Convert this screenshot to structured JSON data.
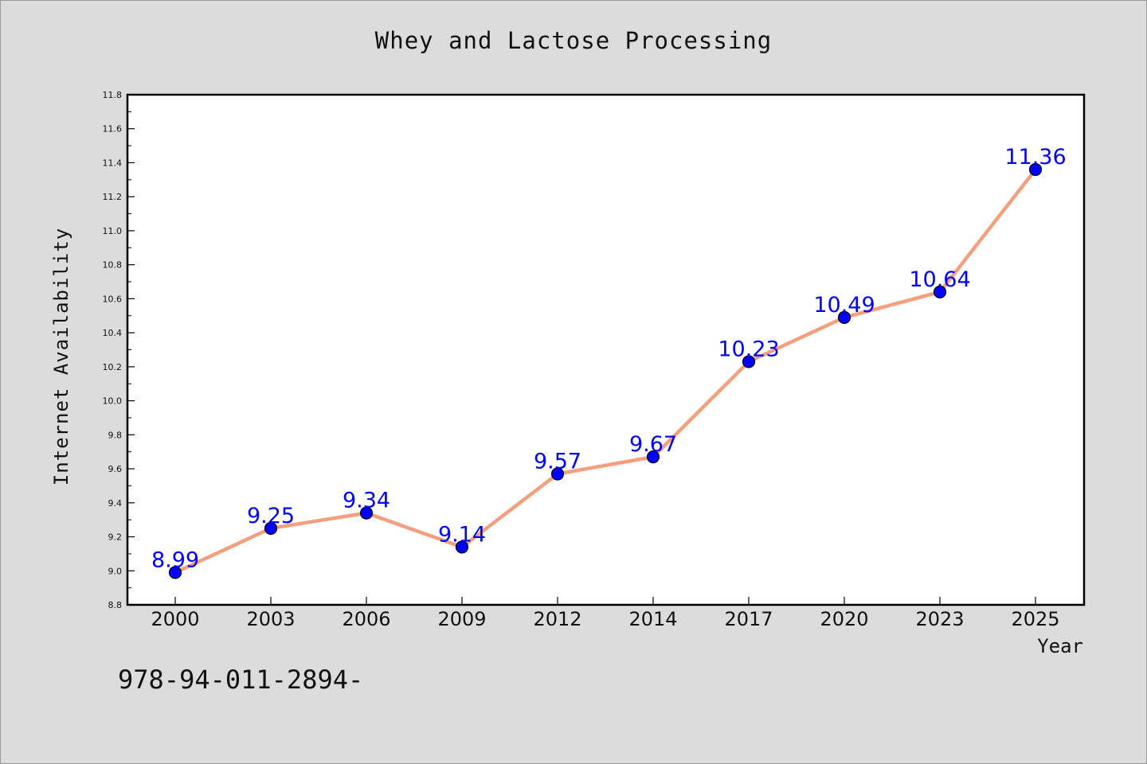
{
  "chart_data": {
    "type": "line",
    "title": "Whey and Lactose Processing",
    "xlabel": "Year",
    "ylabel": "Internet Availability",
    "categories": [
      "2000",
      "2003",
      "2006",
      "2009",
      "2012",
      "2014",
      "2017",
      "2020",
      "2023",
      "2025"
    ],
    "series": [
      {
        "values": [
          8.99,
          9.25,
          9.34,
          9.14,
          9.57,
          9.67,
          10.23,
          10.49,
          10.64,
          11.36
        ],
        "labels": [
          "8.99",
          "9.25",
          "9.34",
          "9.14",
          "9.57",
          "9.67",
          "10.23",
          "10.49",
          "10.64",
          "11.36"
        ]
      }
    ],
    "ylim": [
      8.8,
      11.8
    ],
    "yticks": [
      "8.8",
      "9.0",
      "9.2",
      "9.4",
      "9.6",
      "9.8",
      "10.0",
      "10.2",
      "10.4",
      "10.6",
      "10.8",
      "11.0",
      "11.2",
      "11.4",
      "11.6",
      "11.8"
    ],
    "grid": false,
    "colors": {
      "line": "#f4a07f",
      "marker": "#0000ff",
      "label": "#0000ff"
    }
  },
  "footer": {
    "code": "978-94-011-2894-"
  }
}
